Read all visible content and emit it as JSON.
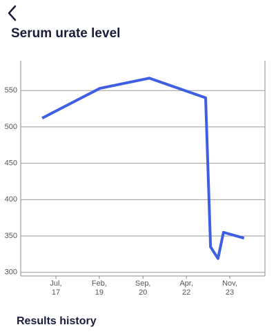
{
  "header": {
    "title": "Serum urate level"
  },
  "chart_data": {
    "type": "line",
    "x": [
      2017.0,
      2019.1,
      2020.9,
      2022.95,
      2023.13,
      2023.4,
      2023.6,
      2024.35
    ],
    "series": [
      {
        "color": "#3f5fe3",
        "values": [
          512,
          553,
          567,
          540,
          335,
          319,
          355,
          347
        ]
      }
    ],
    "xlim": [
      2016.22,
      2025.11
    ],
    "xticks": [
      {
        "value": 2017.5,
        "label": "Jul,\n17"
      },
      {
        "value": 2019.08,
        "label": "Feb,\n19"
      },
      {
        "value": 2020.67,
        "label": "Sep,\n20"
      },
      {
        "value": 2022.25,
        "label": "Apr,\n22"
      },
      {
        "value": 2023.83,
        "label": "Nov,\n23"
      }
    ],
    "ylim": [
      295,
      591
    ],
    "yticks": [
      300,
      350,
      400,
      450,
      500,
      550
    ],
    "grid": true
  },
  "section": {
    "title": "Results history"
  }
}
